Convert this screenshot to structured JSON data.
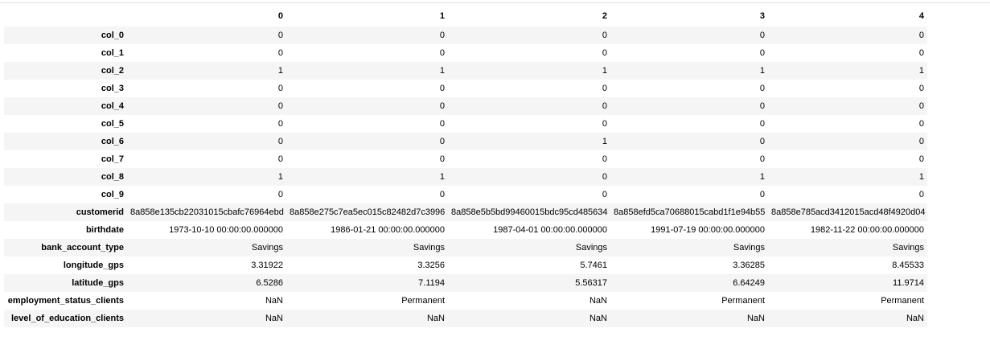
{
  "table": {
    "columns": [
      "0",
      "1",
      "2",
      "3",
      "4"
    ],
    "rows": [
      {
        "label": "col_0",
        "cells": [
          "0",
          "0",
          "0",
          "0",
          "0"
        ]
      },
      {
        "label": "col_1",
        "cells": [
          "0",
          "0",
          "0",
          "0",
          "0"
        ]
      },
      {
        "label": "col_2",
        "cells": [
          "1",
          "1",
          "1",
          "1",
          "1"
        ]
      },
      {
        "label": "col_3",
        "cells": [
          "0",
          "0",
          "0",
          "0",
          "0"
        ]
      },
      {
        "label": "col_4",
        "cells": [
          "0",
          "0",
          "0",
          "0",
          "0"
        ]
      },
      {
        "label": "col_5",
        "cells": [
          "0",
          "0",
          "0",
          "0",
          "0"
        ]
      },
      {
        "label": "col_6",
        "cells": [
          "0",
          "0",
          "1",
          "0",
          "0"
        ]
      },
      {
        "label": "col_7",
        "cells": [
          "0",
          "0",
          "0",
          "0",
          "0"
        ]
      },
      {
        "label": "col_8",
        "cells": [
          "1",
          "1",
          "0",
          "1",
          "1"
        ]
      },
      {
        "label": "col_9",
        "cells": [
          "0",
          "0",
          "0",
          "0",
          "0"
        ]
      },
      {
        "label": "customerid",
        "cells": [
          "8a858e135cb22031015cbafc76964ebd",
          "8a858e275c7ea5ec015c82482d7c3996",
          "8a858e5b5bd99460015bdc95cd485634",
          "8a858efd5ca70688015cabd1f1e94b55",
          "8a858e785acd3412015acd48f4920d04"
        ]
      },
      {
        "label": "birthdate",
        "cells": [
          "1973-10-10 00:00:00.000000",
          "1986-01-21 00:00:00.000000",
          "1987-04-01 00:00:00.000000",
          "1991-07-19 00:00:00.000000",
          "1982-11-22 00:00:00.000000"
        ]
      },
      {
        "label": "bank_account_type",
        "cells": [
          "Savings",
          "Savings",
          "Savings",
          "Savings",
          "Savings"
        ]
      },
      {
        "label": "longitude_gps",
        "cells": [
          "3.31922",
          "3.3256",
          "5.7461",
          "3.36285",
          "8.45533"
        ]
      },
      {
        "label": "latitude_gps",
        "cells": [
          "6.5286",
          "7.1194",
          "5.56317",
          "6.64249",
          "11.9714"
        ]
      },
      {
        "label": "employment_status_clients",
        "cells": [
          "NaN",
          "Permanent",
          "NaN",
          "Permanent",
          "Permanent"
        ]
      },
      {
        "label": "level_of_education_clients",
        "cells": [
          "NaN",
          "NaN",
          "NaN",
          "NaN",
          "NaN"
        ]
      }
    ]
  }
}
